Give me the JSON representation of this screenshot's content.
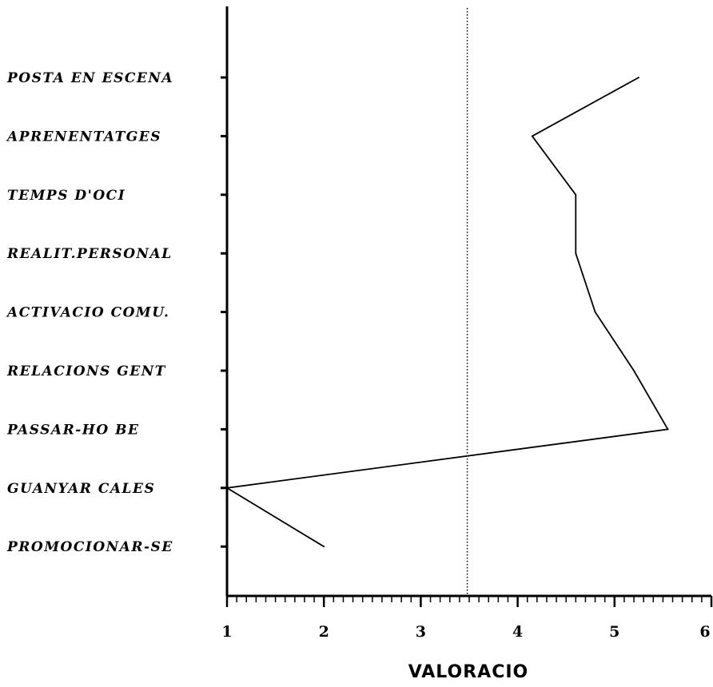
{
  "chart_data": {
    "type": "line",
    "orientation": "horizontal",
    "categories": [
      "POSTA EN ESCENA",
      "APRENENTATGES",
      "TEMPS D'OCI",
      "REALIT.PERSONAL",
      "ACTIVACIO COMU.",
      "RELACIONS GENT",
      "PASSAR-HO BE",
      "GUANYAR CALES",
      "PROMOCIONAR-SE"
    ],
    "values": [
      5.25,
      4.15,
      4.6,
      4.6,
      4.8,
      5.2,
      5.55,
      1.0,
      2.0
    ],
    "xlabel": "VALORACIO",
    "xlim": [
      1,
      6
    ],
    "xticks": [
      "1",
      "2",
      "3",
      "4",
      "5",
      "6"
    ],
    "reference_line": {
      "x": 3.48,
      "style": "dotted"
    },
    "grid": false,
    "legend": "none",
    "line_color": "#000000"
  }
}
